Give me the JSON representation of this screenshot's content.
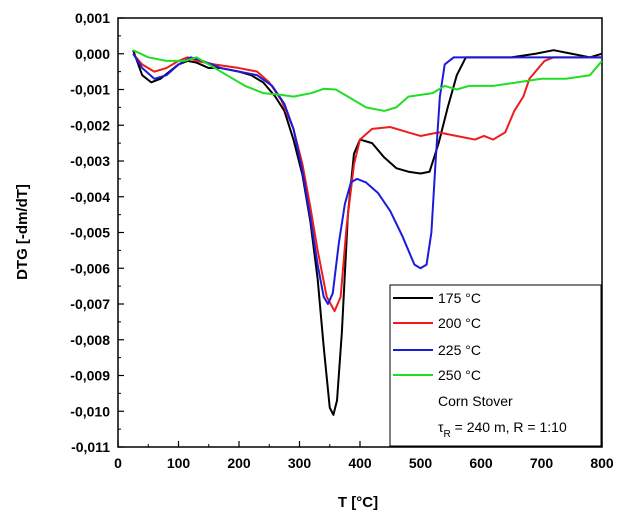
{
  "chart_data": {
    "type": "line",
    "xlabel": "T [°C]",
    "ylabel": "DTG [-dm/dT]",
    "xlim": [
      0,
      800
    ],
    "ylim": [
      -0.011,
      0.001
    ],
    "xticks": [
      0,
      100,
      200,
      300,
      400,
      500,
      600,
      700,
      800
    ],
    "xtick_labels": [
      "0",
      "100",
      "200",
      "300",
      "400",
      "500",
      "600",
      "700",
      "800"
    ],
    "yticks": [
      0.001,
      0.0,
      -0.001,
      -0.002,
      -0.003,
      -0.004,
      -0.005,
      -0.006,
      -0.007,
      -0.008,
      -0.009,
      -0.01,
      -0.011
    ],
    "ytick_labels": [
      "0,001",
      "0,000",
      "-0,001",
      "-0,002",
      "-0,003",
      "-0,004",
      "-0,005",
      "-0,006",
      "-0,007",
      "-0,008",
      "-0,009",
      "-0,010",
      "-0,011"
    ],
    "grid": false,
    "legend_position": "bottom-right",
    "legend_note_line1": "Corn Stover",
    "legend_note_line2_symbol": "τ",
    "legend_note_line2_sub": "R",
    "legend_note_line2_rest": " = 240 m, R = 1:10",
    "series": [
      {
        "name": "175 °C",
        "color": "#000000",
        "points": [
          [
            25,
            0.0001
          ],
          [
            40,
            -0.0006
          ],
          [
            55,
            -0.0008
          ],
          [
            70,
            -0.0007
          ],
          [
            85,
            -0.0005
          ],
          [
            100,
            -0.0003
          ],
          [
            115,
            -0.0002
          ],
          [
            130,
            -0.00025
          ],
          [
            150,
            -0.0004
          ],
          [
            170,
            -0.0004
          ],
          [
            200,
            -0.0005
          ],
          [
            220,
            -0.0006
          ],
          [
            240,
            -0.0008
          ],
          [
            260,
            -0.0012
          ],
          [
            275,
            -0.0016
          ],
          [
            290,
            -0.0024
          ],
          [
            305,
            -0.0034
          ],
          [
            318,
            -0.0047
          ],
          [
            330,
            -0.0063
          ],
          [
            340,
            -0.0082
          ],
          [
            350,
            -0.0099
          ],
          [
            356,
            -0.0101
          ],
          [
            362,
            -0.0097
          ],
          [
            370,
            -0.0078
          ],
          [
            380,
            -0.0045
          ],
          [
            390,
            -0.0028
          ],
          [
            400,
            -0.0024
          ],
          [
            420,
            -0.0025
          ],
          [
            440,
            -0.0029
          ],
          [
            460,
            -0.0032
          ],
          [
            480,
            -0.0033
          ],
          [
            500,
            -0.00335
          ],
          [
            515,
            -0.0033
          ],
          [
            530,
            -0.0025
          ],
          [
            545,
            -0.0015
          ],
          [
            560,
            -0.0006
          ],
          [
            575,
            -0.0001
          ],
          [
            600,
            -0.0001
          ],
          [
            650,
            -0.0001
          ],
          [
            690,
            0.0
          ],
          [
            720,
            0.0001
          ],
          [
            750,
            0.0
          ],
          [
            780,
            -0.0001
          ],
          [
            800,
            0.0
          ]
        ]
      },
      {
        "name": "200 °C",
        "color": "#ee1c1c",
        "points": [
          [
            25,
            0.0
          ],
          [
            40,
            -0.0003
          ],
          [
            60,
            -0.0005
          ],
          [
            80,
            -0.0004
          ],
          [
            100,
            -0.0002
          ],
          [
            115,
            -0.0001
          ],
          [
            130,
            -0.0002
          ],
          [
            160,
            -0.0003
          ],
          [
            200,
            -0.0004
          ],
          [
            230,
            -0.0005
          ],
          [
            250,
            -0.0008
          ],
          [
            270,
            -0.0013
          ],
          [
            290,
            -0.0021
          ],
          [
            305,
            -0.0031
          ],
          [
            318,
            -0.0043
          ],
          [
            330,
            -0.0055
          ],
          [
            345,
            -0.0068
          ],
          [
            358,
            -0.0072
          ],
          [
            368,
            -0.0068
          ],
          [
            378,
            -0.0048
          ],
          [
            390,
            -0.0031
          ],
          [
            400,
            -0.0024
          ],
          [
            420,
            -0.0021
          ],
          [
            450,
            -0.00205
          ],
          [
            480,
            -0.0022
          ],
          [
            500,
            -0.0023
          ],
          [
            530,
            -0.0022
          ],
          [
            560,
            -0.0023
          ],
          [
            590,
            -0.0024
          ],
          [
            605,
            -0.0023
          ],
          [
            620,
            -0.0024
          ],
          [
            640,
            -0.0022
          ],
          [
            655,
            -0.0016
          ],
          [
            670,
            -0.0012
          ],
          [
            680,
            -0.0007
          ],
          [
            690,
            -0.0005
          ],
          [
            705,
            -0.0002
          ],
          [
            720,
            -0.0001
          ],
          [
            760,
            -0.0001
          ],
          [
            800,
            -0.0001
          ]
        ]
      },
      {
        "name": "225 °C",
        "color": "#1b1bdc",
        "points": [
          [
            25,
            0.0
          ],
          [
            40,
            -0.0004
          ],
          [
            60,
            -0.0007
          ],
          [
            80,
            -0.0006
          ],
          [
            100,
            -0.0003
          ],
          [
            120,
            -0.0001
          ],
          [
            140,
            -0.0002
          ],
          [
            170,
            -0.0004
          ],
          [
            200,
            -0.0005
          ],
          [
            230,
            -0.0006
          ],
          [
            255,
            -0.0009
          ],
          [
            275,
            -0.0014
          ],
          [
            290,
            -0.0021
          ],
          [
            305,
            -0.0033
          ],
          [
            318,
            -0.0046
          ],
          [
            330,
            -0.0059
          ],
          [
            340,
            -0.0068
          ],
          [
            347,
            -0.007
          ],
          [
            355,
            -0.0067
          ],
          [
            365,
            -0.0053
          ],
          [
            375,
            -0.0042
          ],
          [
            385,
            -0.0036
          ],
          [
            395,
            -0.0035
          ],
          [
            410,
            -0.0036
          ],
          [
            430,
            -0.0039
          ],
          [
            450,
            -0.0044
          ],
          [
            470,
            -0.0051
          ],
          [
            490,
            -0.0059
          ],
          [
            500,
            -0.006
          ],
          [
            510,
            -0.0059
          ],
          [
            518,
            -0.005
          ],
          [
            525,
            -0.003
          ],
          [
            532,
            -0.0012
          ],
          [
            540,
            -0.0003
          ],
          [
            555,
            -0.0001
          ],
          [
            600,
            -0.0001
          ],
          [
            650,
            -0.0001
          ],
          [
            700,
            -0.0001
          ],
          [
            750,
            -0.0001
          ],
          [
            800,
            -0.0001
          ]
        ]
      },
      {
        "name": "250 °C",
        "color": "#22dd22",
        "points": [
          [
            25,
            0.0001
          ],
          [
            50,
            -0.0001
          ],
          [
            80,
            -0.0002
          ],
          [
            110,
            -0.0002
          ],
          [
            130,
            -0.0001
          ],
          [
            150,
            -0.0003
          ],
          [
            180,
            -0.0006
          ],
          [
            210,
            -0.0009
          ],
          [
            240,
            -0.0011
          ],
          [
            270,
            -0.00115
          ],
          [
            290,
            -0.0012
          ],
          [
            320,
            -0.0011
          ],
          [
            340,
            -0.00098
          ],
          [
            360,
            -0.001
          ],
          [
            380,
            -0.0012
          ],
          [
            410,
            -0.0015
          ],
          [
            440,
            -0.0016
          ],
          [
            460,
            -0.0015
          ],
          [
            480,
            -0.0012
          ],
          [
            500,
            -0.00115
          ],
          [
            520,
            -0.0011
          ],
          [
            540,
            -0.0009
          ],
          [
            560,
            -0.001
          ],
          [
            580,
            -0.0009
          ],
          [
            620,
            -0.0009
          ],
          [
            660,
            -0.0008
          ],
          [
            700,
            -0.0007
          ],
          [
            740,
            -0.0007
          ],
          [
            780,
            -0.0006
          ],
          [
            800,
            -0.0002
          ]
        ]
      }
    ]
  }
}
